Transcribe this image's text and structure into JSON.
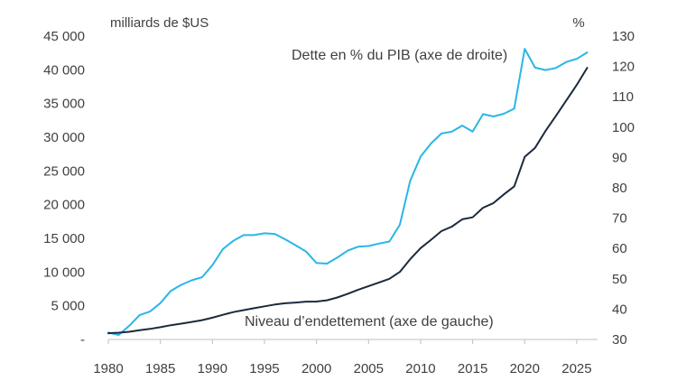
{
  "chart_data": {
    "type": "line",
    "left_axis": {
      "unit_label": "milliards de $US",
      "ylim": [
        0,
        45000
      ],
      "ticks": [
        0,
        5000,
        10000,
        15000,
        20000,
        25000,
        30000,
        35000,
        40000,
        45000
      ],
      "tick_labels": [
        "-",
        "5 000",
        "10 000",
        "15 000",
        "20 000",
        "25 000",
        "30 000",
        "35 000",
        "40 000",
        "45 000"
      ]
    },
    "right_axis": {
      "unit_label": "%",
      "ylim": [
        30,
        130
      ],
      "ticks": [
        30,
        40,
        50,
        60,
        70,
        80,
        90,
        100,
        110,
        120,
        130
      ],
      "tick_labels": [
        "30",
        "40",
        "50",
        "60",
        "70",
        "80",
        "90",
        "100",
        "110",
        "120",
        "130"
      ]
    },
    "x_axis": {
      "xlim": [
        1980,
        2027
      ],
      "ticks": [
        1980,
        1985,
        1990,
        1995,
        2000,
        2005,
        2010,
        2015,
        2020,
        2025
      ],
      "tick_labels": [
        "1980",
        "1985",
        "1990",
        "1995",
        "2000",
        "2005",
        "2010",
        "2015",
        "2020",
        "2025"
      ]
    },
    "grid": false,
    "series": [
      {
        "name": "Dette en % du PIB (axe de droite)",
        "axis": "right",
        "color": "#29b6e8",
        "x": [
          1980,
          1981,
          1982,
          1983,
          1984,
          1985,
          1986,
          1987,
          1988,
          1989,
          1990,
          1991,
          1992,
          1993,
          1994,
          1995,
          1996,
          1997,
          1998,
          1999,
          2000,
          2001,
          2002,
          2003,
          2004,
          2005,
          2006,
          2007,
          2008,
          2009,
          2010,
          2011,
          2012,
          2013,
          2014,
          2015,
          2016,
          2017,
          2018,
          2019,
          2020,
          2021,
          2022,
          2023,
          2024,
          2025,
          2026
        ],
        "values": [
          32.3,
          31.5,
          34.5,
          38.0,
          39.2,
          42.0,
          46.0,
          48.0,
          49.5,
          50.5,
          54.5,
          59.8,
          62.5,
          64.4,
          64.4,
          65.0,
          64.8,
          63.0,
          61.0,
          59.0,
          55.2,
          55.0,
          57.0,
          59.3,
          60.6,
          60.8,
          61.6,
          62.3,
          67.8,
          82.3,
          90.3,
          94.6,
          97.9,
          98.5,
          100.5,
          98.5,
          104.3,
          103.5,
          104.4,
          106.1,
          125.8,
          119.6,
          118.8,
          119.5,
          121.5,
          122.5,
          124.6
        ]
      },
      {
        "name": "Niveau d’endettement (axe de gauche)",
        "axis": "left",
        "color": "#1b2a3c",
        "x": [
          1980,
          1981,
          1982,
          1983,
          1984,
          1985,
          1986,
          1987,
          1988,
          1989,
          1990,
          1991,
          1992,
          1993,
          1994,
          1995,
          1996,
          1997,
          1998,
          1999,
          2000,
          2001,
          2002,
          2003,
          2004,
          2005,
          2006,
          2007,
          2008,
          2009,
          2010,
          2011,
          2012,
          2013,
          2014,
          2015,
          2016,
          2017,
          2018,
          2019,
          2020,
          2021,
          2022,
          2023,
          2024,
          2025,
          2026
        ],
        "values": [
          930,
          1000,
          1140,
          1370,
          1570,
          1820,
          2120,
          2350,
          2600,
          2860,
          3230,
          3660,
          4060,
          4350,
          4640,
          4920,
          5180,
          5370,
          5480,
          5610,
          5630,
          5810,
          6230,
          6780,
          7380,
          7910,
          8450,
          9000,
          10020,
          11910,
          13560,
          14790,
          16070,
          16740,
          17820,
          18120,
          19540,
          20240,
          21520,
          22720,
          27080,
          28430,
          30930,
          33170,
          35460,
          37760,
          40300
        ]
      }
    ],
    "annotations": [
      "Dette en % du PIB (axe de droite)",
      "Niveau d’endettement (axe de gauche)"
    ],
    "legend": "inline annotations"
  }
}
